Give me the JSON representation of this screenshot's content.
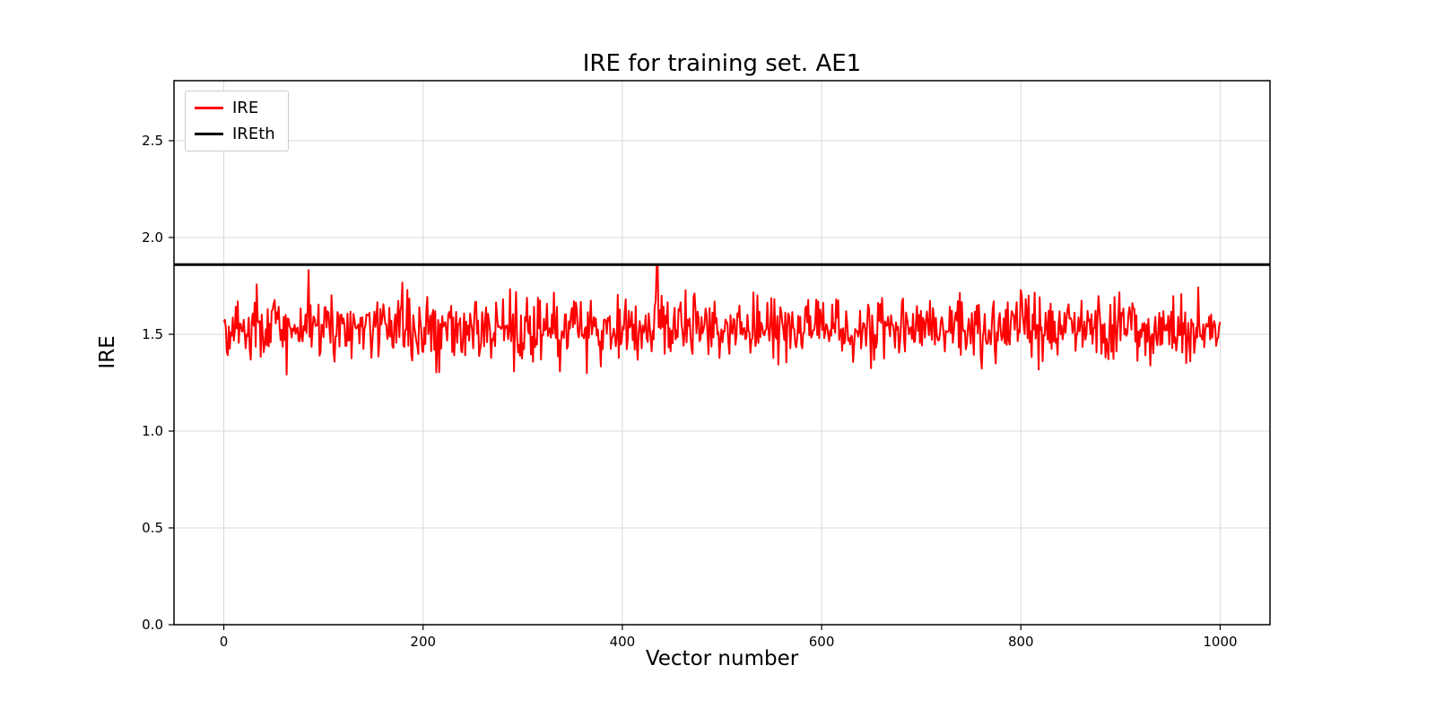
{
  "chart_data": {
    "type": "line",
    "title": "IRE for training set. AE1",
    "xlabel": "Vector number",
    "ylabel": "IRE",
    "xlim": [
      -50,
      1050
    ],
    "ylim": [
      0,
      2.81
    ],
    "x_tick_values": [
      0,
      200,
      400,
      600,
      800,
      1000
    ],
    "x_tick_labels": [
      "0",
      "200",
      "400",
      "600",
      "800",
      "1000"
    ],
    "y_tick_values": [
      0.0,
      0.5,
      1.0,
      1.5,
      2.0,
      2.5
    ],
    "y_tick_labels": [
      "0.0",
      "0.5",
      "1.0",
      "1.5",
      "2.0",
      "2.5"
    ],
    "grid": true,
    "grid_color": "#d9d9d9",
    "axes_color": "#000000",
    "background_color": "#ffffff",
    "legend_position": "upper left",
    "series": [
      {
        "name": "IRE",
        "color": "#ff0000",
        "kind": "noisy-line",
        "n": 1000,
        "x_start": 0,
        "x_end": 1000,
        "mean": 1.53,
        "std": 0.085,
        "min": 1.22,
        "max": 1.85,
        "peak_x": 435,
        "peak_y": 1.855,
        "seed": 42,
        "line_width": 2
      },
      {
        "name": "IREth",
        "color": "#000000",
        "kind": "hline",
        "value": 1.86,
        "line_width": 3
      }
    ]
  }
}
